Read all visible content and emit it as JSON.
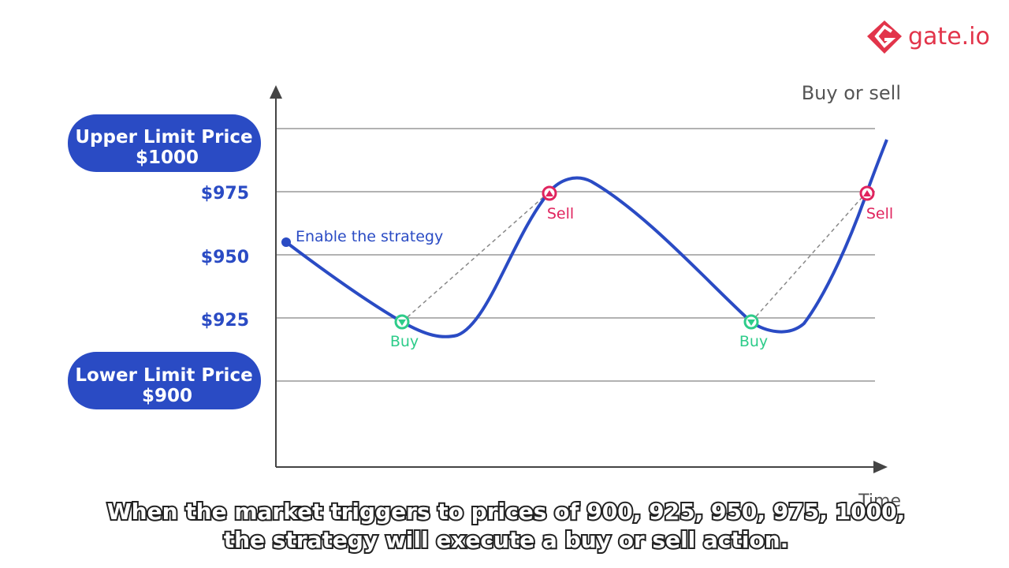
{
  "logo": "gate.io",
  "axis": {
    "y_label": "Buy or sell",
    "x_label": "Time"
  },
  "levels": [
    {
      "title": "Upper Limit Price",
      "price": "$1000"
    },
    {
      "price": "$975"
    },
    {
      "price": "$950"
    },
    {
      "price": "$925"
    },
    {
      "title": "Lower Limit Price",
      "price": "$900"
    }
  ],
  "start_label": "Enable the strategy",
  "markers": [
    {
      "label": "Buy"
    },
    {
      "label": "Sell"
    },
    {
      "label": "Buy"
    },
    {
      "label": "Sell"
    }
  ],
  "caption": [
    "When the market triggers to prices of 900, 925, 950, 975, 1000,",
    "the strategy will execute a buy or sell action."
  ]
}
